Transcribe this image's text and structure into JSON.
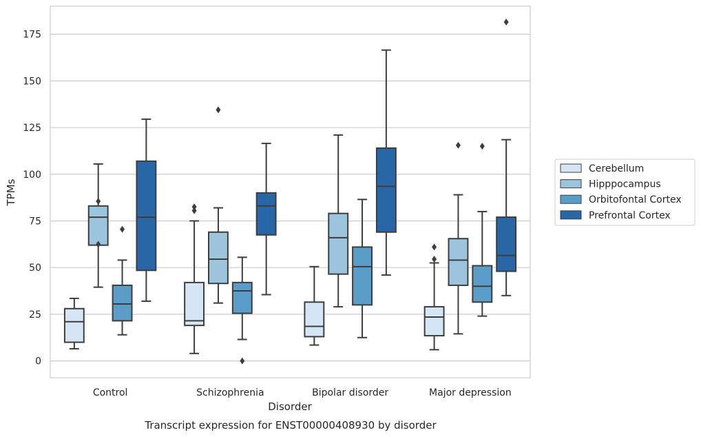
{
  "chart_data": {
    "type": "box",
    "caption": "Transcript expression for ENST00000408930 by disorder",
    "xlabel": "Disorder",
    "ylabel": "TPMs",
    "ylim": [
      -9,
      190
    ],
    "yticks": [
      0,
      25,
      50,
      75,
      100,
      125,
      150,
      175
    ],
    "grid": true,
    "legend_position": "right",
    "categories": [
      "Control",
      "Schizophrenia",
      "Bipolar disorder",
      "Major depression"
    ],
    "series": [
      {
        "name": "Cerebellum",
        "color": "#d6e5f3",
        "boxes": [
          {
            "whislo": 6.5,
            "q1": 10,
            "median": 21,
            "q3": 28,
            "whishi": 33.5,
            "fliers": []
          },
          {
            "whislo": 4,
            "q1": 19,
            "median": 21.5,
            "q3": 42,
            "whishi": 75,
            "fliers": [
              80.5,
              82.5
            ]
          },
          {
            "whislo": 8.5,
            "q1": 13,
            "median": 18.5,
            "q3": 31.5,
            "whishi": 50.5,
            "fliers": []
          },
          {
            "whislo": 6,
            "q1": 13.5,
            "median": 23.5,
            "q3": 29,
            "whishi": 52.5,
            "fliers": [
              54.5,
              61
            ]
          }
        ]
      },
      {
        "name": "Hipppocampus",
        "color": "#9dc4dd",
        "boxes": [
          {
            "whislo": 39.5,
            "q1": 62,
            "median": 77,
            "q3": 83,
            "whishi": 105.5,
            "fliers": [
              62.5,
              85.5
            ]
          },
          {
            "whislo": 31,
            "q1": 41.5,
            "median": 54.5,
            "q3": 69,
            "whishi": 82,
            "fliers": [
              134.5
            ]
          },
          {
            "whislo": 29,
            "q1": 46.5,
            "median": 66,
            "q3": 79,
            "whishi": 121,
            "fliers": []
          },
          {
            "whislo": 14.5,
            "q1": 40.5,
            "median": 54,
            "q3": 65.5,
            "whishi": 89,
            "fliers": [
              115.5
            ]
          }
        ]
      },
      {
        "name": "Orbitofontal Cortex",
        "color": "#5a9dc8",
        "boxes": [
          {
            "whislo": 14,
            "q1": 21.5,
            "median": 30.5,
            "q3": 40.5,
            "whishi": 54,
            "fliers": [
              70.5
            ]
          },
          {
            "whislo": 11.5,
            "q1": 25.5,
            "median": 37.5,
            "q3": 42,
            "whishi": 55.5,
            "fliers": [
              0
            ]
          },
          {
            "whislo": 12.5,
            "q1": 30,
            "median": 50.5,
            "q3": 61,
            "whishi": 86.5,
            "fliers": []
          },
          {
            "whislo": 24,
            "q1": 31.5,
            "median": 40,
            "q3": 51,
            "whishi": 80,
            "fliers": [
              115
            ]
          }
        ]
      },
      {
        "name": "Prefrontal Cortex",
        "color": "#2866a6",
        "boxes": [
          {
            "whislo": 32,
            "q1": 48.5,
            "median": 77,
            "q3": 107,
            "whishi": 129.5,
            "fliers": []
          },
          {
            "whislo": 35.5,
            "q1": 67.5,
            "median": 83,
            "q3": 90,
            "whishi": 116.5,
            "fliers": []
          },
          {
            "whislo": 46,
            "q1": 69,
            "median": 93.5,
            "q3": 114,
            "whishi": 166.5,
            "fliers": []
          },
          {
            "whislo": 35,
            "q1": 48,
            "median": 56.5,
            "q3": 77,
            "whishi": 118.5,
            "fliers": [
              181.5
            ]
          }
        ]
      }
    ]
  }
}
